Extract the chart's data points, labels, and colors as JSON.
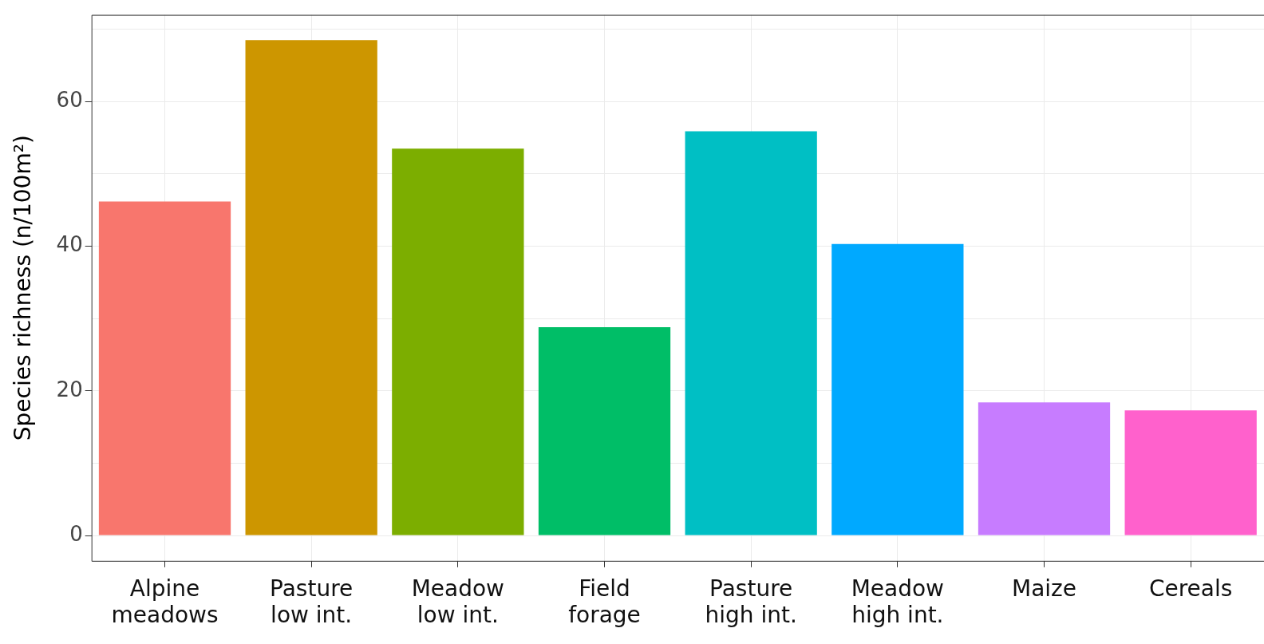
{
  "chart_data": {
    "type": "bar",
    "ylabel": "Species richness (n/100m²)",
    "categories": [
      "Alpine\nmeadows",
      "Pasture\nlow int.",
      "Meadow\nlow int.",
      "Field\nforage",
      "Pasture\nhigh int.",
      "Meadow\nhigh int.",
      "Maize",
      "Cereals"
    ],
    "values": [
      46.2,
      68.5,
      53.5,
      28.8,
      55.9,
      40.3,
      18.4,
      17.3
    ],
    "colors": [
      "#f8766d",
      "#cd9600",
      "#7cae00",
      "#00be67",
      "#00bfc4",
      "#00a9ff",
      "#c77cff",
      "#ff61cc"
    ],
    "ylim": [
      -3.5,
      72
    ],
    "yticks": [
      0,
      {
        "value": 10,
        "label": null
      },
      20,
      {
        "value": 30,
        "label": null
      },
      40,
      {
        "value": 50,
        "label": null
      },
      60,
      {
        "value": 70,
        "label": null
      }
    ],
    "grid": true,
    "legend": false
  }
}
